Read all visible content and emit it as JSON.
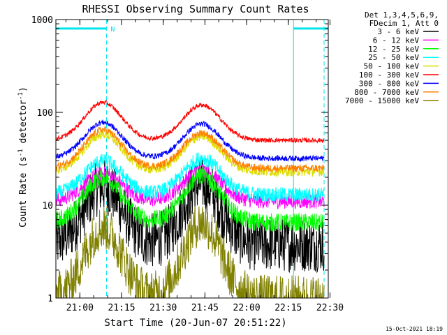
{
  "chart_data": {
    "type": "line",
    "title": "RHESSI Observing Summary Count Rates",
    "xlabel": "Start Time (20-Jun-07 20:51:22)",
    "ylabel_parts": [
      "Count Rate (s",
      "-1",
      " detector",
      "-1",
      ")"
    ],
    "ylabel": "Count Rate (s-1 detector-1)",
    "y_scale": "log",
    "ylim": [
      1,
      1000
    ],
    "xlim_minutes": [
      0,
      98
    ],
    "x_ticks": [
      {
        "m": 8.63,
        "label": "21:00"
      },
      {
        "m": 23.63,
        "label": "21:15"
      },
      {
        "m": 38.63,
        "label": "21:30"
      },
      {
        "m": 53.63,
        "label": "21:45"
      },
      {
        "m": 68.63,
        "label": "22:00"
      },
      {
        "m": 83.63,
        "label": "22:15"
      },
      {
        "m": 98.63,
        "label": "22:30"
      }
    ],
    "y_ticks": [
      {
        "v": 1,
        "label": "1"
      },
      {
        "v": 10,
        "label": "10"
      },
      {
        "v": 100,
        "label": "100"
      },
      {
        "v": 1000,
        "label": "1000"
      }
    ],
    "legend_header": [
      "Det 1,3,4,5,6,9,",
      "FDecim 1, Att 0"
    ],
    "legend_position": "top-right",
    "night_markers": [
      {
        "m": 0,
        "style": "solid"
      },
      {
        "m": 18.2,
        "style": "dashed"
      },
      {
        "m": 85.5,
        "style": "solid"
      },
      {
        "m": 96.5,
        "style": "dashed"
      }
    ],
    "saa_flags": [
      {
        "m_start": 0,
        "m_end": 18.2,
        "value": 800,
        "label": "N"
      },
      {
        "m_start": 85.5,
        "m_end": 98,
        "value": 800,
        "label": ""
      }
    ],
    "flag_color": "#00e5ee",
    "data_end_minute": 96.5,
    "series": [
      {
        "name": "3 - 6 keV",
        "color": "#000000",
        "peak_minute": 17,
        "peak2_minute": 52.5,
        "valley": 3.8,
        "peak": 16,
        "peak2": 17,
        "end": 3.8,
        "noise": 0.3
      },
      {
        "name": "6 - 12 keV",
        "color": "#ff00ff",
        "peak_minute": 17,
        "peak2_minute": 52.5,
        "valley": 11,
        "peak": 22,
        "peak2": 24,
        "end": 11.5,
        "noise": 0.08
      },
      {
        "name": "12 - 25 keV",
        "color": "#00ff00",
        "peak_minute": 17,
        "peak2_minute": 52.5,
        "valley": 6.5,
        "peak": 20,
        "peak2": 21,
        "end": 6.5,
        "noise": 0.1
      },
      {
        "name": "25 - 50 keV",
        "color": "#00ffff",
        "peak_minute": 17,
        "peak2_minute": 52.5,
        "valley": 13,
        "peak": 30,
        "peak2": 32,
        "end": 13,
        "noise": 0.08
      },
      {
        "name": "50 - 100 keV",
        "color": "#dddd00",
        "peak_minute": 17,
        "peak2_minute": 52.5,
        "valley": 23,
        "peak": 58,
        "peak2": 55,
        "end": 23,
        "noise": 0.05
      },
      {
        "name": "100 - 300 keV",
        "color": "#ff0000",
        "peak_minute": 17,
        "peak2_minute": 52.5,
        "valley": 50,
        "peak": 128,
        "peak2": 120,
        "end": 52,
        "noise": 0.025
      },
      {
        "name": "300 - 800 keV",
        "color": "#0000ff",
        "peak_minute": 17,
        "peak2_minute": 52.5,
        "valley": 32,
        "peak": 78,
        "peak2": 75,
        "end": 32,
        "noise": 0.03
      },
      {
        "name": "800 - 7000 keV",
        "color": "#ff8000",
        "peak_minute": 17,
        "peak2_minute": 52.5,
        "valley": 25,
        "peak": 65,
        "peak2": 60,
        "end": 25,
        "noise": 0.04
      },
      {
        "name": "7000 - 15000 keV",
        "color": "#808000",
        "peak_minute": 17,
        "peak2_minute": 52.5,
        "valley": 1.0,
        "peak": 5.8,
        "peak2": 6.5,
        "end": 1.0,
        "noise": 0.25
      }
    ]
  },
  "footer": {
    "date": "15-Oct-2021 18:19"
  }
}
